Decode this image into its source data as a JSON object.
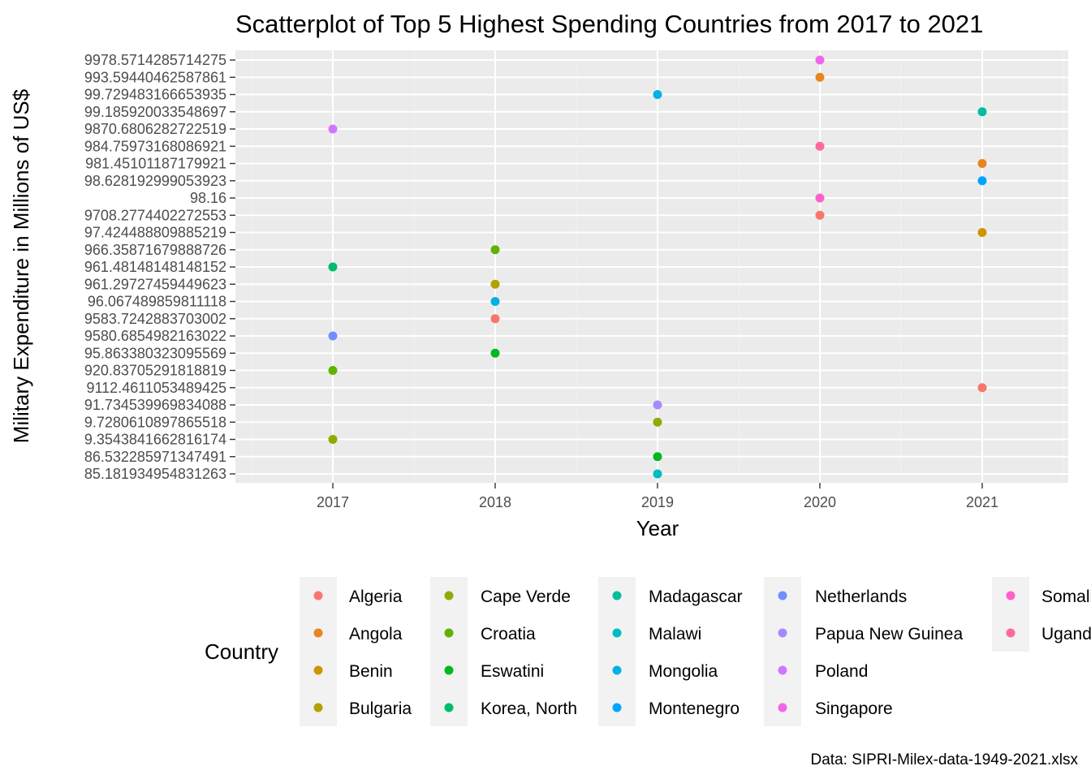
{
  "chart_data": {
    "type": "scatter",
    "title": "Scatterplot of Top 5 Highest Spending Countries from 2017 to 2021",
    "xlabel": "Year",
    "ylabel": "Military Expenditure in Millions of US$",
    "x_categories": [
      "2017",
      "2018",
      "2019",
      "2020",
      "2021"
    ],
    "y_categories": [
      "85.181934954831263",
      "86.532285971347491",
      "9.3543841662816174",
      "9.7280610897865518",
      "91.734539969834088",
      "9112.4611053489425",
      "920.83705291818819",
      "95.863380323095569",
      "9580.6854982163022",
      "9583.7242883703002",
      "96.067489859811118",
      "961.29727459449623",
      "961.4814814814815­2",
      "966.3587167988872­6",
      "97.424488809885219",
      "9708.2774402272553",
      "98.16",
      "98.628192999053923",
      "981.45101187179921",
      "984.75973168086921",
      "9870.6806282722519",
      "99.185920033548697",
      "99.729483166653935",
      "993.59440462587861",
      "9978.5714285714275"
    ],
    "y_axis_note": "discrete (categorical) axis, labels sorted as text",
    "legend_title": "Country",
    "legend_position": "bottom",
    "grid": true,
    "points": [
      {
        "country": "Algeria",
        "x": "2018",
        "y": "9583.7242883703002"
      },
      {
        "country": "Algeria",
        "x": "2020",
        "y": "9708.2774402272553"
      },
      {
        "country": "Algeria",
        "x": "2021",
        "y": "9112.4611053489425"
      },
      {
        "country": "Angola",
        "x": "2020",
        "y": "993.59440462587861"
      },
      {
        "country": "Angola",
        "x": "2021",
        "y": "981.45101187179921"
      },
      {
        "country": "Benin",
        "x": "2021",
        "y": "97.424488809885219"
      },
      {
        "country": "Bulgaria",
        "x": "2018",
        "y": "961.29727459449623"
      },
      {
        "country": "Cape Verde",
        "x": "2017",
        "y": "9.3543841662816174"
      },
      {
        "country": "Cape Verde",
        "x": "2019",
        "y": "9.7280610897865518"
      },
      {
        "country": "Croatia",
        "x": "2017",
        "y": "920.83705291818819"
      },
      {
        "country": "Croatia",
        "x": "2018",
        "y": "966.3587167988872­6"
      },
      {
        "country": "Eswatini",
        "x": "2018",
        "y": "95.863380323095569"
      },
      {
        "country": "Eswatini",
        "x": "2019",
        "y": "86.532285971347491"
      },
      {
        "country": "Korea, North",
        "x": "2017",
        "y": "961.4814814814815­2"
      },
      {
        "country": "Madagascar",
        "x": "2021",
        "y": "99.185920033548697"
      },
      {
        "country": "Malawi",
        "x": "2019",
        "y": "85.181934954831263"
      },
      {
        "country": "Mongolia",
        "x": "2018",
        "y": "96.067489859811118"
      },
      {
        "country": "Mongolia",
        "x": "2019",
        "y": "99.729483166653935"
      },
      {
        "country": "Montenegro",
        "x": "2021",
        "y": "98.628192999053923"
      },
      {
        "country": "Netherlands",
        "x": "2017",
        "y": "9580.6854982163022"
      },
      {
        "country": "Papua New Guinea",
        "x": "2019",
        "y": "91.734539969834088"
      },
      {
        "country": "Poland",
        "x": "2017",
        "y": "9870.6806282722519"
      },
      {
        "country": "Singapore",
        "x": "2020",
        "y": "9978.5714285714275"
      },
      {
        "country": "Somalia",
        "x": "2020",
        "y": "98.16"
      },
      {
        "country": "Uganda",
        "x": "2020",
        "y": "984.75973168086921"
      }
    ],
    "legend": [
      {
        "name": "Algeria",
        "color": "#F8766D"
      },
      {
        "name": "Angola",
        "color": "#E7851E"
      },
      {
        "name": "Benin",
        "color": "#D09400"
      },
      {
        "name": "Bulgaria",
        "color": "#B2A100"
      },
      {
        "name": "Cape Verde",
        "color": "#8EAB00"
      },
      {
        "name": "Croatia",
        "color": "#5EB300"
      },
      {
        "name": "Eswatini",
        "color": "#00B81F"
      },
      {
        "name": "Korea, North",
        "color": "#00BC6C"
      },
      {
        "name": "Madagascar",
        "color": "#00BE9D"
      },
      {
        "name": "Malawi",
        "color": "#00BBC3"
      },
      {
        "name": "Mongolia",
        "color": "#00B2E3"
      },
      {
        "name": "Montenegro",
        "color": "#00A5FF"
      },
      {
        "name": "Netherlands",
        "color": "#6F8FFF"
      },
      {
        "name": "Papua New Guinea",
        "color": "#A58AFF"
      },
      {
        "name": "Poland",
        "color": "#D376FF"
      },
      {
        "name": "Singapore",
        "color": "#F066EA"
      },
      {
        "name": "Somalia",
        "color": "#FF61C9"
      },
      {
        "name": "Uganda",
        "color": "#FF6A98"
      }
    ],
    "caption": "Data: SIPRI-Milex-data-1949-2021.xlsx"
  }
}
